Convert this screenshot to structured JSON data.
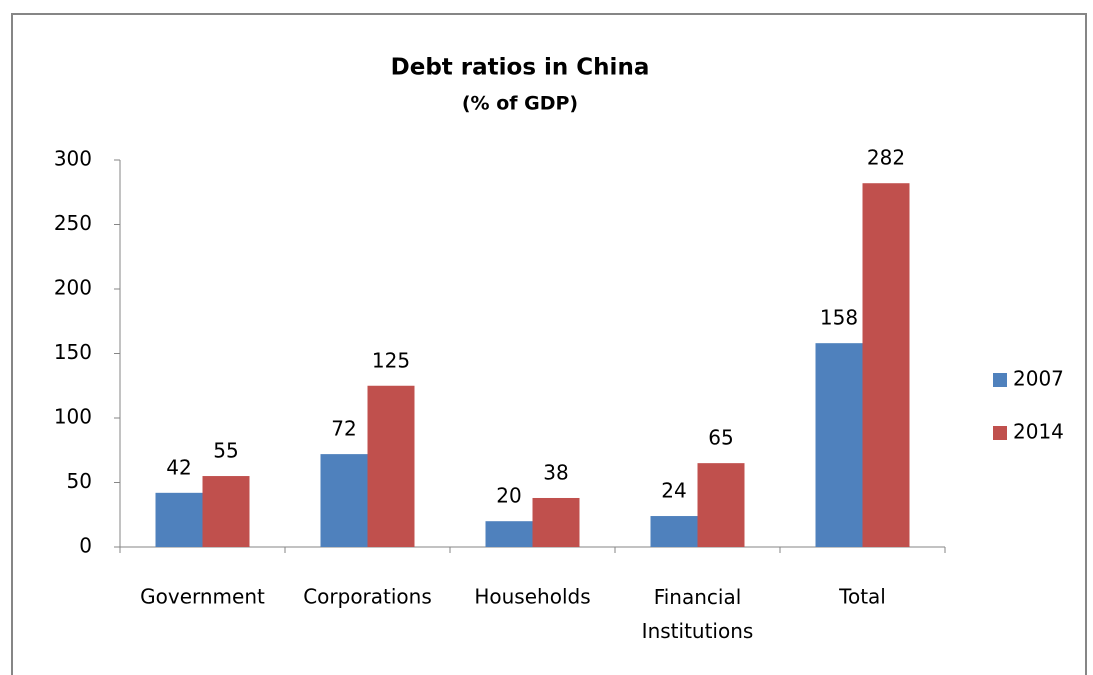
{
  "chart_data": {
    "type": "bar",
    "title": "Debt ratios in China",
    "subtitle": "(% of GDP)",
    "categories": [
      "Government",
      "Corporations",
      "Households",
      "Financial Institutions",
      "Total"
    ],
    "series": [
      {
        "name": "2007",
        "color": "#4f81bd",
        "values": [
          42,
          72,
          20,
          24,
          158
        ]
      },
      {
        "name": "2014",
        "color": "#c0504d",
        "values": [
          55,
          125,
          38,
          65,
          282
        ]
      }
    ],
    "ylim": [
      0,
      300
    ],
    "yticks": [
      0,
      50,
      100,
      150,
      200,
      250,
      300
    ],
    "grid": false,
    "legend": "right"
  }
}
